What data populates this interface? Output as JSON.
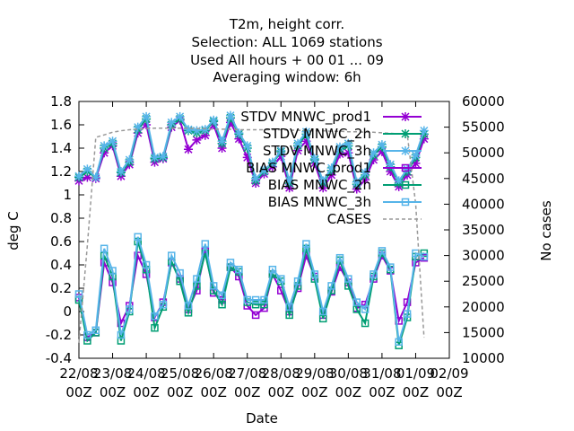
{
  "chart_data": {
    "type": "line",
    "title_lines": [
      "T2m, height corr.",
      "Selection: ALL    1069 stations",
      "Used  All hours + 00 01 ... 09",
      "Averaging window:  6h"
    ],
    "xlabel": "Date",
    "ylabel": "deg C",
    "y2label": "No cases",
    "ylim": [
      -0.4,
      1.8
    ],
    "y2lim": [
      10000,
      60000
    ],
    "yticks": [
      "-0.4",
      "-0.2",
      "0",
      "0.2",
      "0.4",
      "0.6",
      "0.8",
      "1",
      "1.2",
      "1.4",
      "1.6",
      "1.8"
    ],
    "y2ticks": [
      "10000",
      "15000",
      "20000",
      "25000",
      "30000",
      "35000",
      "40000",
      "45000",
      "50000",
      "55000",
      "60000"
    ],
    "xticks": [
      {
        "top": "22/08",
        "bottom": "00Z"
      },
      {
        "top": "23/08",
        "bottom": "00Z"
      },
      {
        "top": "24/08",
        "bottom": "00Z"
      },
      {
        "top": "25/08",
        "bottom": "00Z"
      },
      {
        "top": "26/08",
        "bottom": "00Z"
      },
      {
        "top": "27/08",
        "bottom": "00Z"
      },
      {
        "top": "28/08",
        "bottom": "00Z"
      },
      {
        "top": "29/08",
        "bottom": "00Z"
      },
      {
        "top": "30/08",
        "bottom": "00Z"
      },
      {
        "top": "31/08",
        "bottom": "00Z"
      },
      {
        "top": "01/09",
        "bottom": "00Z"
      },
      {
        "top": "02/09",
        "bottom": "00Z"
      }
    ],
    "x_unit": "hours after 22/08 00Z",
    "x": [
      0,
      6,
      12,
      18,
      24,
      30,
      36,
      42,
      48,
      54,
      60,
      66,
      72,
      78,
      84,
      90,
      96,
      102,
      108,
      114,
      120,
      126,
      132,
      138,
      144,
      150,
      156,
      162,
      168,
      174,
      180,
      186,
      192,
      198,
      204,
      210,
      216,
      222,
      228,
      234,
      240,
      246,
      252,
      258
    ],
    "legend_position": "top-right",
    "series": [
      {
        "name": "STDV MNWC_prod1",
        "color": "#9400d3",
        "marker": "x-star",
        "axis": "y",
        "values": [
          1.12,
          1.15,
          1.14,
          1.36,
          1.42,
          1.16,
          1.26,
          1.53,
          1.6,
          1.28,
          1.31,
          1.58,
          1.64,
          1.39,
          1.47,
          1.51,
          1.6,
          1.4,
          1.62,
          1.48,
          1.32,
          1.1,
          1.18,
          1.24,
          1.33,
          1.06,
          1.38,
          1.46,
          1.27,
          1.06,
          1.17,
          1.35,
          1.36,
          1.05,
          1.13,
          1.3,
          1.37,
          1.2,
          1.07,
          1.17,
          1.27,
          1.48,
          null,
          null
        ]
      },
      {
        "name": "STDV MNWC_2h",
        "color": "#009e73",
        "marker": "x-star",
        "axis": "y",
        "values": [
          1.15,
          1.2,
          1.15,
          1.4,
          1.44,
          1.19,
          1.28,
          1.56,
          1.65,
          1.31,
          1.32,
          1.6,
          1.65,
          1.55,
          1.53,
          1.55,
          1.63,
          1.44,
          1.66,
          1.52,
          1.4,
          1.12,
          1.2,
          1.27,
          1.37,
          1.1,
          1.42,
          1.52,
          1.3,
          1.1,
          1.21,
          1.39,
          1.42,
          1.09,
          1.17,
          1.34,
          1.41,
          1.24,
          1.1,
          1.2,
          1.32,
          1.52,
          null,
          null
        ]
      },
      {
        "name": "STDV MNWC_3h",
        "color": "#56b4e9",
        "marker": "x-star",
        "axis": "y",
        "values": [
          1.16,
          1.22,
          1.15,
          1.42,
          1.46,
          1.2,
          1.3,
          1.58,
          1.67,
          1.32,
          1.33,
          1.62,
          1.67,
          1.56,
          1.55,
          1.56,
          1.64,
          1.46,
          1.68,
          1.53,
          1.42,
          1.14,
          1.21,
          1.28,
          1.38,
          1.12,
          1.44,
          1.54,
          1.31,
          1.12,
          1.23,
          1.41,
          1.44,
          1.11,
          1.19,
          1.36,
          1.43,
          1.26,
          1.12,
          1.22,
          1.34,
          1.55,
          null,
          null
        ]
      },
      {
        "name": "BIAS MNWC_prod1",
        "color": "#9400d3",
        "marker": "square",
        "axis": "y",
        "values": [
          0.12,
          -0.22,
          -0.18,
          0.42,
          0.25,
          -0.1,
          0.05,
          0.48,
          0.32,
          -0.05,
          0.08,
          0.42,
          0.28,
          0.02,
          0.18,
          0.52,
          0.16,
          0.1,
          0.38,
          0.3,
          0.05,
          -0.03,
          0.03,
          0.32,
          0.18,
          0.0,
          0.2,
          0.48,
          0.3,
          -0.03,
          0.17,
          0.38,
          0.25,
          0.03,
          0.06,
          0.28,
          0.48,
          0.35,
          -0.08,
          0.08,
          0.42,
          0.46,
          null,
          null
        ]
      },
      {
        "name": "BIAS MNWC_2h",
        "color": "#009e73",
        "marker": "square",
        "axis": "y",
        "values": [
          0.1,
          -0.25,
          -0.18,
          0.48,
          0.3,
          -0.25,
          0.0,
          0.6,
          0.36,
          -0.14,
          0.04,
          0.43,
          0.26,
          -0.01,
          0.22,
          0.5,
          0.18,
          0.06,
          0.38,
          0.34,
          0.08,
          0.06,
          0.06,
          0.32,
          0.26,
          -0.03,
          0.22,
          0.54,
          0.28,
          -0.06,
          0.18,
          0.44,
          0.22,
          0.02,
          -0.1,
          0.3,
          0.5,
          0.36,
          -0.29,
          -0.05,
          0.47,
          0.5,
          null,
          null
        ]
      },
      {
        "name": "BIAS MNWC_3h",
        "color": "#56b4e9",
        "marker": "square",
        "axis": "y",
        "values": [
          0.15,
          -0.2,
          -0.16,
          0.54,
          0.35,
          -0.2,
          0.02,
          0.64,
          0.4,
          -0.04,
          0.06,
          0.48,
          0.33,
          0.05,
          0.28,
          0.58,
          0.22,
          0.14,
          0.42,
          0.36,
          0.1,
          0.1,
          0.1,
          0.36,
          0.28,
          0.04,
          0.26,
          0.58,
          0.32,
          0.0,
          0.22,
          0.46,
          0.28,
          0.08,
          0.02,
          0.32,
          0.52,
          0.38,
          -0.26,
          -0.02,
          0.5,
          0.47,
          null,
          null
        ]
      },
      {
        "name": "CASES",
        "color": "#999999",
        "marker": "none",
        "dashed": true,
        "axis": "y2",
        "values": [
          13000,
          32000,
          53000,
          53500,
          54000,
          54300,
          54500,
          54600,
          54700,
          54800,
          54800,
          54800,
          54800,
          54800,
          54700,
          54700,
          54600,
          54600,
          54600,
          54500,
          54500,
          54500,
          54500,
          54500,
          54500,
          54400,
          54400,
          54300,
          54300,
          54300,
          54200,
          54200,
          54100,
          54100,
          54000,
          54000,
          53900,
          53800,
          53700,
          53600,
          40000,
          14000,
          null,
          null
        ]
      }
    ]
  }
}
